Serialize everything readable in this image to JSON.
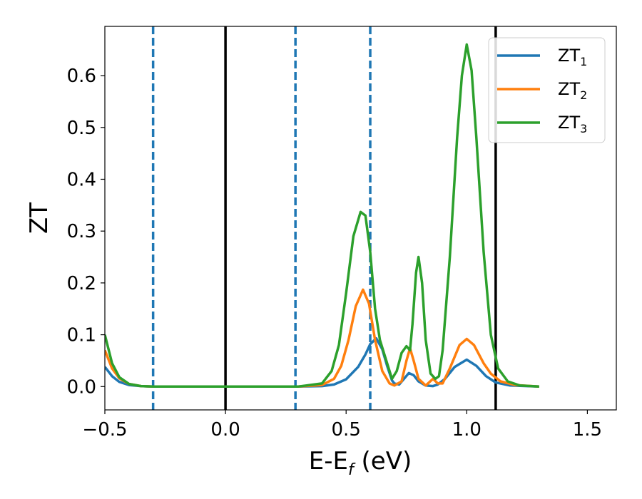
{
  "chart_data": {
    "type": "line",
    "xlabel": "E-E",
    "xlabel_subscript": "f",
    "xlabel_suffix": " (eV)",
    "ylabel": "ZT",
    "xlim": [
      -0.5,
      1.62
    ],
    "ylim": [
      -0.045,
      0.695
    ],
    "x_ticks": [
      -0.5,
      0.0,
      0.5,
      1.0,
      1.5
    ],
    "x_tick_labels": [
      "−0.5",
      "0.0",
      "0.5",
      "1.0",
      "1.5"
    ],
    "y_ticks": [
      0.0,
      0.1,
      0.2,
      0.3,
      0.4,
      0.5,
      0.6
    ],
    "y_tick_labels": [
      "0.0",
      "0.1",
      "0.2",
      "0.3",
      "0.4",
      "0.5",
      "0.6"
    ],
    "grid": false,
    "legend_position": "top-right",
    "vertical_lines": [
      {
        "x": -0.3,
        "style": "dashed",
        "color": "#1f77b4"
      },
      {
        "x": 0.0,
        "style": "solid",
        "color": "#000000"
      },
      {
        "x": 0.29,
        "style": "dashed",
        "color": "#1f77b4"
      },
      {
        "x": 0.6,
        "style": "dashed",
        "color": "#1f77b4"
      },
      {
        "x": 1.12,
        "style": "solid",
        "color": "#000000"
      }
    ],
    "series": [
      {
        "name": "ZT",
        "subscript": "1",
        "color": "#1f77b4",
        "points": [
          [
            -0.5,
            0.038
          ],
          [
            -0.47,
            0.02
          ],
          [
            -0.44,
            0.009
          ],
          [
            -0.4,
            0.003
          ],
          [
            -0.35,
            0.001
          ],
          [
            -0.3,
            0.0
          ],
          [
            0.0,
            0.0
          ],
          [
            0.3,
            0.0
          ],
          [
            0.4,
            0.001
          ],
          [
            0.45,
            0.004
          ],
          [
            0.5,
            0.014
          ],
          [
            0.55,
            0.038
          ],
          [
            0.58,
            0.062
          ],
          [
            0.6,
            0.082
          ],
          [
            0.625,
            0.093
          ],
          [
            0.65,
            0.072
          ],
          [
            0.67,
            0.04
          ],
          [
            0.69,
            0.012
          ],
          [
            0.7,
            0.006
          ],
          [
            0.72,
            0.004
          ],
          [
            0.74,
            0.015
          ],
          [
            0.76,
            0.026
          ],
          [
            0.78,
            0.022
          ],
          [
            0.8,
            0.01
          ],
          [
            0.83,
            0.002
          ],
          [
            0.86,
            0.001
          ],
          [
            0.88,
            0.004
          ],
          [
            0.91,
            0.015
          ],
          [
            0.95,
            0.038
          ],
          [
            1.0,
            0.052
          ],
          [
            1.04,
            0.04
          ],
          [
            1.08,
            0.02
          ],
          [
            1.12,
            0.008
          ],
          [
            1.18,
            0.002
          ],
          [
            1.3,
            0.0
          ]
        ]
      },
      {
        "name": "ZT",
        "subscript": "2",
        "color": "#ff7f0e",
        "points": [
          [
            -0.5,
            0.07
          ],
          [
            -0.47,
            0.035
          ],
          [
            -0.44,
            0.016
          ],
          [
            -0.4,
            0.005
          ],
          [
            -0.35,
            0.001
          ],
          [
            -0.3,
            0.0
          ],
          [
            0.0,
            0.0
          ],
          [
            0.3,
            0.0
          ],
          [
            0.4,
            0.003
          ],
          [
            0.45,
            0.015
          ],
          [
            0.48,
            0.04
          ],
          [
            0.51,
            0.09
          ],
          [
            0.54,
            0.155
          ],
          [
            0.57,
            0.187
          ],
          [
            0.595,
            0.16
          ],
          [
            0.62,
            0.09
          ],
          [
            0.65,
            0.03
          ],
          [
            0.68,
            0.006
          ],
          [
            0.7,
            0.002
          ],
          [
            0.73,
            0.01
          ],
          [
            0.75,
            0.05
          ],
          [
            0.765,
            0.074
          ],
          [
            0.78,
            0.05
          ],
          [
            0.8,
            0.015
          ],
          [
            0.83,
            0.002
          ],
          [
            0.86,
            0.015
          ],
          [
            0.88,
            0.006
          ],
          [
            0.9,
            0.006
          ],
          [
            0.93,
            0.035
          ],
          [
            0.97,
            0.08
          ],
          [
            1.0,
            0.092
          ],
          [
            1.03,
            0.08
          ],
          [
            1.07,
            0.045
          ],
          [
            1.1,
            0.025
          ],
          [
            1.14,
            0.01
          ],
          [
            1.2,
            0.003
          ],
          [
            1.3,
            0.0
          ]
        ]
      },
      {
        "name": "ZT",
        "subscript": "3",
        "color": "#2ca02c",
        "points": [
          [
            -0.5,
            0.1
          ],
          [
            -0.47,
            0.045
          ],
          [
            -0.44,
            0.018
          ],
          [
            -0.4,
            0.005
          ],
          [
            -0.35,
            0.001
          ],
          [
            -0.3,
            0.0
          ],
          [
            0.0,
            0.0
          ],
          [
            0.3,
            0.0
          ],
          [
            0.4,
            0.006
          ],
          [
            0.44,
            0.03
          ],
          [
            0.47,
            0.08
          ],
          [
            0.5,
            0.18
          ],
          [
            0.53,
            0.29
          ],
          [
            0.56,
            0.337
          ],
          [
            0.58,
            0.33
          ],
          [
            0.6,
            0.26
          ],
          [
            0.62,
            0.15
          ],
          [
            0.64,
            0.09
          ],
          [
            0.66,
            0.06
          ],
          [
            0.69,
            0.015
          ],
          [
            0.71,
            0.03
          ],
          [
            0.73,
            0.065
          ],
          [
            0.75,
            0.078
          ],
          [
            0.765,
            0.07
          ],
          [
            0.775,
            0.12
          ],
          [
            0.79,
            0.22
          ],
          [
            0.8,
            0.25
          ],
          [
            0.815,
            0.2
          ],
          [
            0.83,
            0.09
          ],
          [
            0.85,
            0.025
          ],
          [
            0.87,
            0.015
          ],
          [
            0.885,
            0.02
          ],
          [
            0.9,
            0.07
          ],
          [
            0.93,
            0.25
          ],
          [
            0.96,
            0.48
          ],
          [
            0.98,
            0.6
          ],
          [
            1.0,
            0.66
          ],
          [
            1.02,
            0.61
          ],
          [
            1.04,
            0.48
          ],
          [
            1.07,
            0.26
          ],
          [
            1.1,
            0.1
          ],
          [
            1.13,
            0.035
          ],
          [
            1.17,
            0.01
          ],
          [
            1.22,
            0.002
          ],
          [
            1.3,
            0.0
          ]
        ]
      }
    ]
  }
}
